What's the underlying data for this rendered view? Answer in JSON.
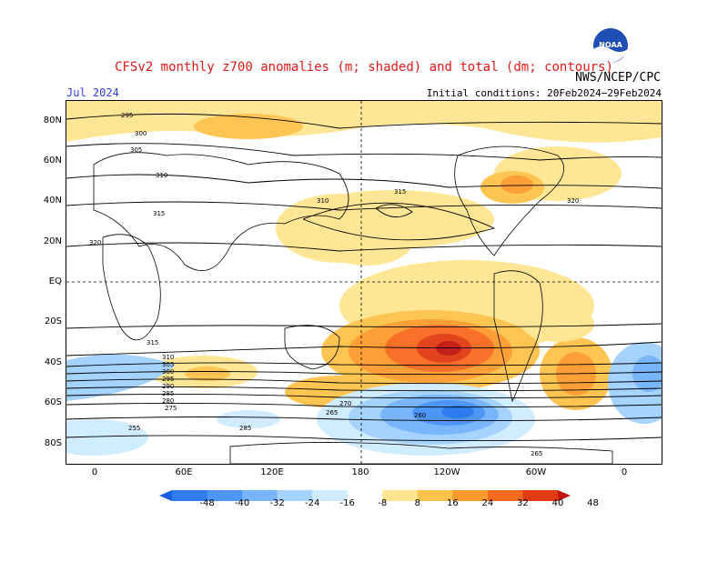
{
  "header": {
    "title": "CFSv2 monthly z700 anomalies (m; shaded) and total (dm; contours)",
    "agency": "NWS/NCEP/CPC",
    "month": "Jul 2024",
    "initial_conditions": "Initial conditions: 20Feb2024−29Feb2024",
    "logo_text": "NOAA"
  },
  "axes": {
    "lat_ticks": [
      "80N",
      "60N",
      "40N",
      "20N",
      "EQ",
      "20S",
      "40S",
      "60S",
      "80S"
    ],
    "lon_ticks": [
      "0",
      "60E",
      "120E",
      "180",
      "120W",
      "60W",
      "0"
    ]
  },
  "colorbar": {
    "labels": [
      "-48",
      "-40",
      "-32",
      "-24",
      "-16",
      "-8",
      "8",
      "16",
      "24",
      "32",
      "40",
      "48"
    ],
    "colors": [
      "#1a5fe0",
      "#2e7cf0",
      "#4d96f7",
      "#78b5fb",
      "#a6d3fd",
      "#d0ecff",
      "#ffffff",
      "#ffe590",
      "#ffc24a",
      "#ff9a2e",
      "#f86a1e",
      "#e23b12",
      "#c0160c"
    ]
  },
  "contour_labels": [
    "295",
    "300",
    "305",
    "310",
    "315",
    "320",
    "310",
    "315",
    "320",
    "315",
    "310",
    "305",
    "300",
    "295",
    "290",
    "285",
    "280",
    "275",
    "270",
    "265",
    "260",
    "255",
    "285",
    "265"
  ],
  "colors": {
    "title": "#e01818",
    "month": "#3040d8",
    "positive_anomaly": "#ffc24a",
    "negative_anomaly": "#4d96f7"
  }
}
